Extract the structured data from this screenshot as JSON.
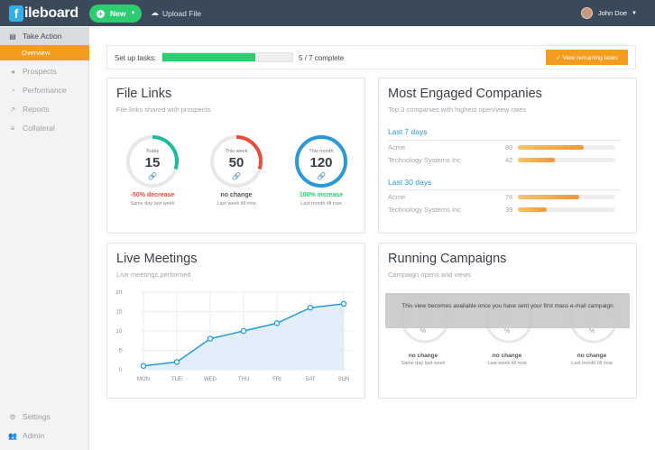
{
  "topbar": {
    "logo_letter": "f",
    "logo_text": "ileboard",
    "new_label": "New",
    "upload_label": "Upload File",
    "user_name": "John Doe"
  },
  "sidebar": {
    "items": [
      {
        "label": "Take Action",
        "icon": "inbox-icon"
      },
      {
        "label": "Overview",
        "icon": ""
      },
      {
        "label": "Prospects",
        "icon": "megaphone-icon"
      },
      {
        "label": "Performance",
        "icon": "gauge-icon"
      },
      {
        "label": "Reports",
        "icon": "trend-icon"
      },
      {
        "label": "Collateral",
        "icon": "stack-icon"
      }
    ],
    "bottom": [
      {
        "label": "Settings",
        "icon": "gear-icon"
      },
      {
        "label": "Admin",
        "icon": "users-icon"
      }
    ]
  },
  "setup": {
    "label": "Set up tasks:",
    "count": "5 / 7 complete",
    "progress": 0.714,
    "button": "✓ View remaining tasks"
  },
  "file_links": {
    "title": "File Links",
    "subtitle": "File links shared with prospects",
    "gauges": [
      {
        "label": "Today",
        "value": "15",
        "change": "-50% decrease",
        "desc": "Same day last week",
        "color": "#1abc9c",
        "change_color": "#e74c3c",
        "link_color": "#1abc9c",
        "fill": 0.3
      },
      {
        "label": "This week",
        "value": "50",
        "change": "no change",
        "desc": "Last week till now",
        "color": "#e74c3c",
        "change_color": "#555555",
        "link_color": "#e74c3c",
        "fill": 0.3
      },
      {
        "label": "This month",
        "value": "120",
        "change": "100% increase",
        "desc": "Last month till now",
        "color": "#2b99d6",
        "change_color": "#2ecc71",
        "link_color": "#2b99d6",
        "fill": 1.0
      }
    ]
  },
  "engaged": {
    "title": "Most Engaged Companies",
    "subtitle": "Top 3 companies with highest open/view rates",
    "periods": [
      {
        "label": "Last 7 days",
        "rows": [
          {
            "name": "Acme",
            "value": "80",
            "fill": 0.68
          },
          {
            "name": "Technology Systems Inc",
            "value": "42",
            "fill": 0.38
          }
        ]
      },
      {
        "label": "Last 30 days",
        "rows": [
          {
            "name": "Acme",
            "value": "76",
            "fill": 0.63
          },
          {
            "name": "Technology Systems Inc",
            "value": "39",
            "fill": 0.3
          }
        ]
      }
    ]
  },
  "meetings": {
    "title": "Live Meetings",
    "subtitle": "Live meetings performed"
  },
  "campaigns": {
    "title": "Running Campaigns",
    "subtitle": "Campaign opens and views",
    "overlay": "This view becomes available once you have sent your first mass e-mail campaign",
    "gauges": [
      {
        "value": "0",
        "pct": "%",
        "change": "no change",
        "desc": "Same day last week"
      },
      {
        "value": "0",
        "pct": "%",
        "change": "no change",
        "desc": "Last week till now"
      },
      {
        "value": "0",
        "pct": "%",
        "change": "no change",
        "desc": "Last month till now"
      }
    ]
  },
  "chart_data": {
    "type": "area",
    "categories": [
      "MON",
      "TUE",
      "WED",
      "THU",
      "FRI",
      "SAT",
      "SUN"
    ],
    "values": [
      1,
      2,
      8,
      10,
      12,
      16,
      17
    ],
    "yticks": [
      "0",
      "5",
      "10",
      "15",
      "20"
    ],
    "ylim": [
      0,
      20
    ],
    "grid": true,
    "color": "#2b99d6"
  }
}
